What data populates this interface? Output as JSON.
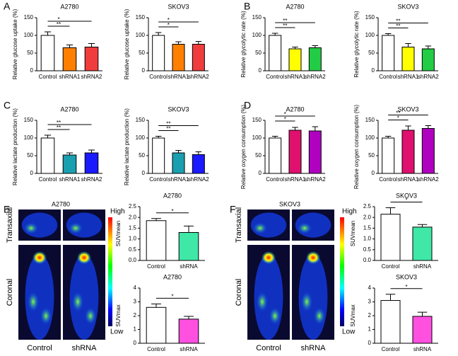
{
  "panels": [
    "A",
    "B",
    "C",
    "D",
    "E",
    "F"
  ],
  "images": [
    {
      "title": "A2780",
      "rows": [
        "Transaxial",
        "Coronal"
      ],
      "cols": [
        "Control",
        "shRNA"
      ],
      "scale": [
        "High",
        "Low"
      ]
    },
    {
      "title": "SKOV3",
      "rows": [
        "Transaxial",
        "Coronal"
      ],
      "cols": [
        "Control",
        "shRNA"
      ],
      "scale": [
        "High",
        "Low"
      ]
    }
  ],
  "chart_data": [
    {
      "type": "bar",
      "title": "A2780",
      "y_label": "Relative glucose uptake (%)",
      "categories": [
        "Control",
        "shRNA1",
        "shRNA2"
      ],
      "values": [
        100,
        65,
        67
      ],
      "errors": [
        10,
        8,
        10
      ],
      "colors": [
        "#ffffff",
        "#ff8000",
        "#f03c3c"
      ],
      "ylim": [
        0,
        150
      ],
      "yticks": [
        0,
        50,
        100,
        150
      ],
      "brackets": [
        "**",
        "*"
      ]
    },
    {
      "type": "bar",
      "title": "SKOV3",
      "y_label": "Relative glucose uptake (%)",
      "categories": [
        "Control",
        "shRNA1",
        "shRNA2"
      ],
      "values": [
        100,
        75,
        75
      ],
      "errors": [
        8,
        7,
        8
      ],
      "colors": [
        "#ffffff",
        "#ff8000",
        "#f03c3c"
      ],
      "ylim": [
        0,
        150
      ],
      "yticks": [
        0,
        50,
        100,
        150
      ],
      "brackets": [
        "*",
        "*"
      ]
    },
    {
      "type": "bar",
      "title": "A2780",
      "y_label": "Relative glycolytic rate (%)",
      "categories": [
        "Control",
        "shRNA1",
        "shRNA2"
      ],
      "values": [
        100,
        62,
        65
      ],
      "errors": [
        6,
        5,
        6
      ],
      "colors": [
        "#ffffff",
        "#ffff00",
        "#22cc44"
      ],
      "ylim": [
        0,
        150
      ],
      "yticks": [
        0,
        50,
        100,
        150
      ],
      "brackets": [
        "**",
        "**"
      ]
    },
    {
      "type": "bar",
      "title": "SKOV3",
      "y_label": "Relative glycolytic rate (%)",
      "categories": [
        "Control",
        "shRNA1",
        "shRNA2"
      ],
      "values": [
        100,
        67,
        62
      ],
      "errors": [
        5,
        10,
        8
      ],
      "colors": [
        "#ffffff",
        "#ffff00",
        "#22cc44"
      ],
      "ylim": [
        0,
        150
      ],
      "yticks": [
        0,
        50,
        100,
        150
      ],
      "brackets": [
        "**",
        "**"
      ]
    },
    {
      "type": "bar",
      "title": "A2780",
      "y_label": "Relative lactate production (%)",
      "categories": [
        "Control",
        "shRNA1",
        "shRNA2"
      ],
      "values": [
        100,
        52,
        58
      ],
      "errors": [
        8,
        6,
        8
      ],
      "colors": [
        "#ffffff",
        "#1a9fb0",
        "#1a1aff"
      ],
      "ylim": [
        0,
        150
      ],
      "yticks": [
        0,
        50,
        100,
        150
      ],
      "brackets": [
        "**",
        "**"
      ]
    },
    {
      "type": "bar",
      "title": "SKOV3",
      "y_label": "Relative lactate production (%)",
      "categories": [
        "Control",
        "shRNA1",
        "shRNA2"
      ],
      "values": [
        100,
        58,
        53
      ],
      "errors": [
        5,
        7,
        8
      ],
      "colors": [
        "#ffffff",
        "#1a9fb0",
        "#1a1aff"
      ],
      "ylim": [
        0,
        150
      ],
      "yticks": [
        0,
        50,
        100,
        150
      ],
      "brackets": [
        "**",
        "**"
      ]
    },
    {
      "type": "bar",
      "title": "A2780",
      "y_label": "Relative oxygen consumption (%)",
      "categories": [
        "Control",
        "shRNA1",
        "shRNA2"
      ],
      "values": [
        100,
        122,
        120
      ],
      "errors": [
        5,
        8,
        12
      ],
      "colors": [
        "#ffffff",
        "#e0106e",
        "#b000c0"
      ],
      "ylim": [
        0,
        150
      ],
      "yticks": [
        0,
        50,
        100,
        150
      ],
      "brackets": [
        "*",
        "*"
      ]
    },
    {
      "type": "bar",
      "title": "SKOV3",
      "y_label": "Relative oxygen consumption (%)",
      "categories": [
        "Control",
        "shRNA1",
        "shRNA2"
      ],
      "values": [
        100,
        122,
        127
      ],
      "errors": [
        5,
        12,
        8
      ],
      "colors": [
        "#ffffff",
        "#e0106e",
        "#b000c0"
      ],
      "ylim": [
        0,
        150
      ],
      "yticks": [
        0,
        50,
        100,
        150
      ],
      "brackets": [
        "*",
        "**"
      ]
    },
    {
      "type": "bar",
      "title": "A2780",
      "y_label": "SUVmean",
      "categories": [
        "Control",
        "shRNA"
      ],
      "values": [
        1.85,
        1.3
      ],
      "errors": [
        0.1,
        0.3
      ],
      "colors": [
        "#ffffff",
        "#40e8a8"
      ],
      "ylim": [
        0,
        2.5
      ],
      "yticks": [
        {
          "value": 0,
          "label": "0.0"
        },
        0.5,
        {
          "value": 1,
          "label": "1.0"
        },
        1.5,
        {
          "value": 2,
          "label": "2.0"
        },
        2.5
      ],
      "brackets": [
        "*"
      ]
    },
    {
      "type": "bar",
      "title": "A2780",
      "y_label": "SUVmax",
      "categories": [
        "Control",
        "shRNA"
      ],
      "values": [
        2.6,
        1.75
      ],
      "errors": [
        0.25,
        0.2
      ],
      "colors": [
        "#ffffff",
        "#ff50e0"
      ],
      "ylim": [
        0,
        4
      ],
      "yticks": [
        0,
        1,
        2,
        3,
        4
      ],
      "brackets": [
        "*"
      ]
    },
    {
      "type": "bar",
      "title": "SKOV3",
      "y_label": "SUVmean",
      "categories": [
        "Control",
        "shRNA"
      ],
      "values": [
        2.15,
        1.55
      ],
      "errors": [
        0.3,
        0.12
      ],
      "colors": [
        "#ffffff",
        "#40e8a8"
      ],
      "ylim": [
        0,
        2.5
      ],
      "yticks": [
        {
          "value": 0,
          "label": "0.0"
        },
        0.5,
        {
          "value": 1,
          "label": "1.0"
        },
        1.5,
        {
          "value": 2,
          "label": "2.0"
        },
        2.5
      ],
      "brackets": [
        "*"
      ]
    },
    {
      "type": "bar",
      "title": "SKOV3",
      "y_label": "SUVmax",
      "categories": [
        "Control",
        "shRNA"
      ],
      "values": [
        3.1,
        1.95
      ],
      "errors": [
        0.45,
        0.3
      ],
      "colors": [
        "#ffffff",
        "#ff50e0"
      ],
      "ylim": [
        0,
        4
      ],
      "yticks": [
        0,
        1,
        2,
        3,
        4
      ],
      "brackets": [
        "*"
      ]
    }
  ]
}
